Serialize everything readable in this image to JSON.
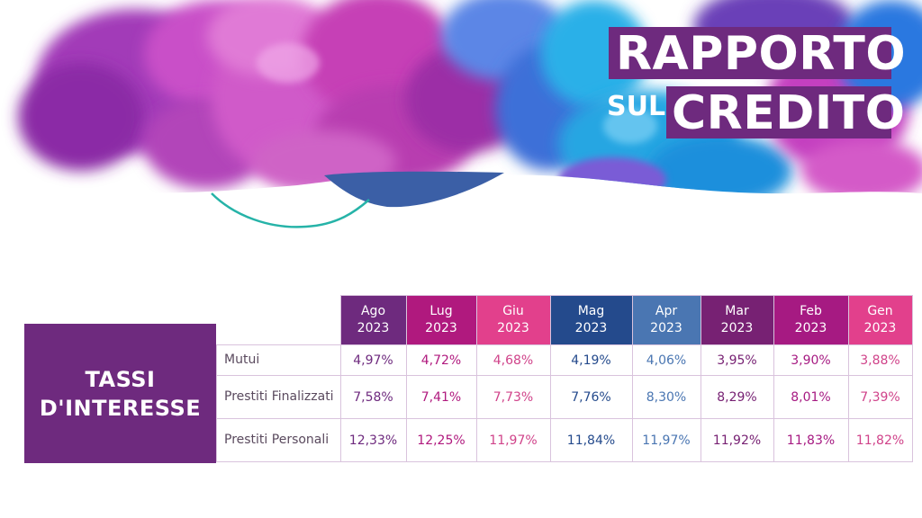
{
  "header": {
    "title_line1": "RAPPORTO",
    "title_small": "SUL",
    "title_line2": "CREDITO"
  },
  "section_label": [
    "TASSI",
    "D'INTERESSE"
  ],
  "colors": {
    "primary_purple": "#6e2a7e",
    "magenta": "#b0197e",
    "pink": "#e2408c",
    "navy": "#244a8c",
    "steel_blue": "#4a76b2",
    "plum": "#772173"
  },
  "table": {
    "columns": [
      {
        "month": "Ago",
        "year": "2023",
        "bg": "#6e2a7e",
        "fg": "#6e2a7e"
      },
      {
        "month": "Lug",
        "year": "2023",
        "bg": "#b0197e",
        "fg": "#b0197e"
      },
      {
        "month": "Giu",
        "year": "2023",
        "bg": "#e2408c",
        "fg": "#d0438a"
      },
      {
        "month": "Mag",
        "year": "2023",
        "bg": "#244a8c",
        "fg": "#244a8c"
      },
      {
        "month": "Apr",
        "year": "2023",
        "bg": "#4a76b2",
        "fg": "#4a76b2"
      },
      {
        "month": "Mar",
        "year": "2023",
        "bg": "#772173",
        "fg": "#772173"
      },
      {
        "month": "Feb",
        "year": "2023",
        "bg": "#a61a82",
        "fg": "#a61a82"
      },
      {
        "month": "Gen",
        "year": "2023",
        "bg": "#e2408c",
        "fg": "#d0438a"
      }
    ],
    "rows": [
      {
        "label": "Mutui",
        "values": [
          "4,97%",
          "4,72%",
          "4,68%",
          "4,19%",
          "4,06%",
          "3,95%",
          "3,90%",
          "3,88%"
        ]
      },
      {
        "label": "Prestiti Finalizzati",
        "values": [
          "7,58%",
          "7,41%",
          "7,73%",
          "7,76%",
          "8,30%",
          "8,29%",
          "8,01%",
          "7,39%"
        ]
      },
      {
        "label": "Prestiti Personali",
        "values": [
          "12,33%",
          "12,25%",
          "11,97%",
          "11,84%",
          "11,97%",
          "11,92%",
          "11,83%",
          "11,82%"
        ]
      }
    ]
  }
}
